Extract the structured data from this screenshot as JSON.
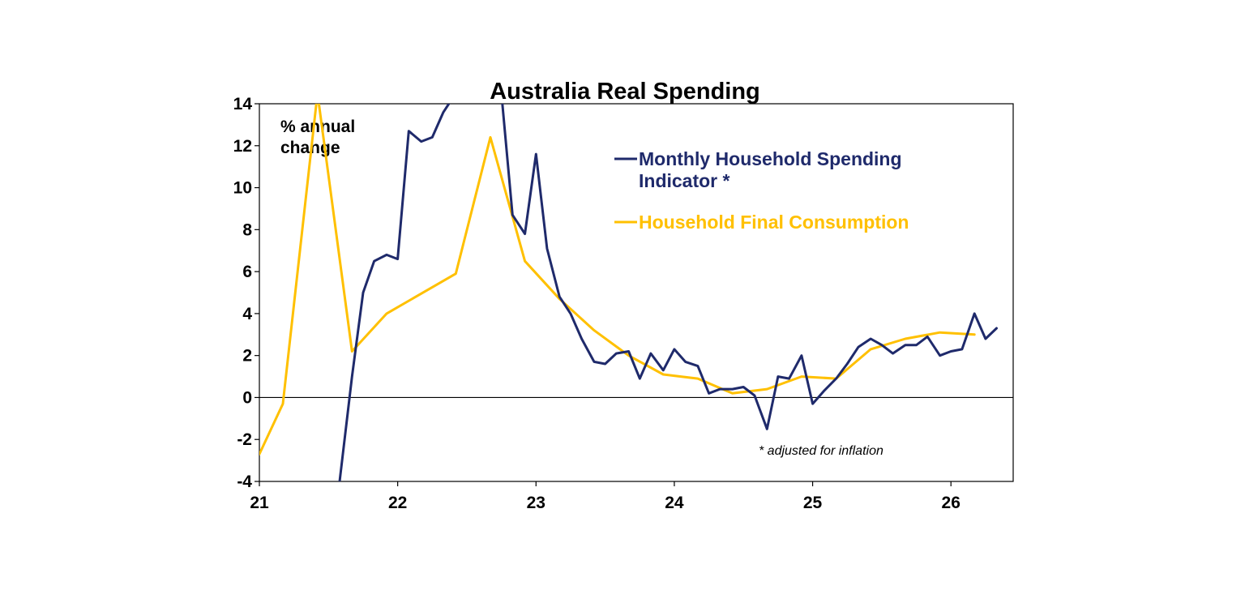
{
  "chart_data": {
    "type": "line",
    "title": "Australia Real Spending",
    "ylabel_lines": [
      "% annual",
      "change"
    ],
    "ylim": [
      -4,
      14
    ],
    "yticks": [
      14,
      12,
      10,
      8,
      6,
      4,
      2,
      0,
      -2,
      -4
    ],
    "xlim": [
      21.0,
      26.45
    ],
    "xticks": [
      {
        "value": 21,
        "label": "21"
      },
      {
        "value": 22,
        "label": "22"
      },
      {
        "value": 23,
        "label": "23"
      },
      {
        "value": 24,
        "label": "24"
      },
      {
        "value": 25,
        "label": "25"
      },
      {
        "value": 26,
        "label": "26"
      }
    ],
    "grid": false,
    "legend_position": "top-right",
    "series": [
      {
        "name": "Household Final Consumption",
        "color": "#FFC000",
        "legend_lines": [
          "Household Final Consumption"
        ],
        "points": [
          [
            21.0,
            -2.7
          ],
          [
            21.17,
            -0.3
          ],
          [
            21.42,
            14.5
          ],
          [
            21.67,
            2.2
          ],
          [
            21.92,
            4.0
          ],
          [
            22.42,
            5.9
          ],
          [
            22.67,
            12.4
          ],
          [
            22.92,
            6.5
          ],
          [
            23.17,
            4.7
          ],
          [
            23.42,
            3.2
          ],
          [
            23.67,
            2.0
          ],
          [
            23.92,
            1.1
          ],
          [
            24.17,
            0.9
          ],
          [
            24.42,
            0.2
          ],
          [
            24.67,
            0.4
          ],
          [
            24.92,
            1.0
          ],
          [
            25.17,
            0.9
          ],
          [
            25.42,
            2.3
          ],
          [
            25.67,
            2.8
          ],
          [
            25.92,
            3.1
          ],
          [
            26.17,
            3.0
          ]
        ]
      },
      {
        "name": "Monthly Household Spending Indicator *",
        "color": "#1F2A6B",
        "legend_lines": [
          "Monthly Household Spending",
          "Indicator *"
        ],
        "points": [
          [
            21.58,
            -4.0
          ],
          [
            21.67,
            1.0
          ],
          [
            21.75,
            5.0
          ],
          [
            21.83,
            6.5
          ],
          [
            21.92,
            6.8
          ],
          [
            22.0,
            6.6
          ],
          [
            22.08,
            12.7
          ],
          [
            22.17,
            12.2
          ],
          [
            22.25,
            12.4
          ],
          [
            22.33,
            13.6
          ],
          [
            22.42,
            14.5
          ],
          [
            22.67,
            14.5
          ],
          [
            22.75,
            14.5
          ],
          [
            22.83,
            8.7
          ],
          [
            22.92,
            7.8
          ],
          [
            23.0,
            11.6
          ],
          [
            23.08,
            7.1
          ],
          [
            23.17,
            4.8
          ],
          [
            23.25,
            4.0
          ],
          [
            23.33,
            2.8
          ],
          [
            23.42,
            1.7
          ],
          [
            23.5,
            1.6
          ],
          [
            23.58,
            2.1
          ],
          [
            23.67,
            2.2
          ],
          [
            23.75,
            0.9
          ],
          [
            23.83,
            2.1
          ],
          [
            23.92,
            1.3
          ],
          [
            24.0,
            2.3
          ],
          [
            24.08,
            1.7
          ],
          [
            24.17,
            1.5
          ],
          [
            24.25,
            0.2
          ],
          [
            24.33,
            0.4
          ],
          [
            24.42,
            0.4
          ],
          [
            24.5,
            0.5
          ],
          [
            24.58,
            0.1
          ],
          [
            24.67,
            -1.5
          ],
          [
            24.75,
            1.0
          ],
          [
            24.83,
            0.9
          ],
          [
            24.92,
            2.0
          ],
          [
            25.0,
            -0.3
          ],
          [
            25.08,
            0.3
          ],
          [
            25.17,
            0.9
          ],
          [
            25.25,
            1.6
          ],
          [
            25.33,
            2.4
          ],
          [
            25.42,
            2.8
          ],
          [
            25.5,
            2.5
          ],
          [
            25.58,
            2.1
          ],
          [
            25.67,
            2.5
          ],
          [
            25.75,
            2.5
          ],
          [
            25.83,
            2.9
          ],
          [
            25.92,
            2.0
          ],
          [
            26.0,
            2.2
          ],
          [
            26.08,
            2.3
          ],
          [
            26.17,
            4.0
          ],
          [
            26.25,
            2.8
          ],
          [
            26.33,
            3.3
          ]
        ]
      }
    ],
    "annotations": [
      "* adjusted for inflation"
    ]
  }
}
